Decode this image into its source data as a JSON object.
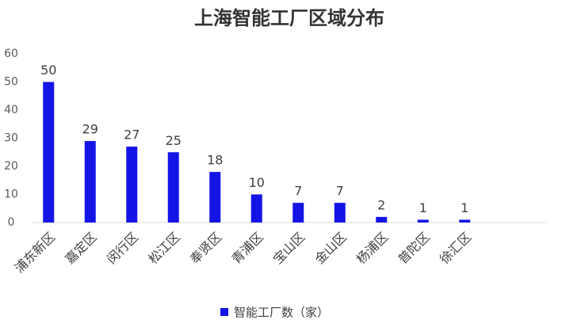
{
  "chart_data": {
    "type": "bar",
    "title": "上海智能工厂区域分布",
    "categories": [
      "浦东新区",
      "嘉定区",
      "闵行区",
      "松江区",
      "奉贤区",
      "青浦区",
      "宝山区",
      "金山区",
      "杨浦区",
      "普陀区",
      "徐汇区"
    ],
    "series": [
      {
        "name": "智能工厂数（家）",
        "color": "#1414e6",
        "values": [
          50,
          29,
          27,
          25,
          18,
          10,
          7,
          7,
          2,
          1,
          1
        ]
      }
    ],
    "ylim": [
      0,
      60
    ],
    "yticks": [
      0,
      10,
      20,
      30,
      40,
      50,
      60
    ],
    "grid": false,
    "legend": "bottom"
  }
}
